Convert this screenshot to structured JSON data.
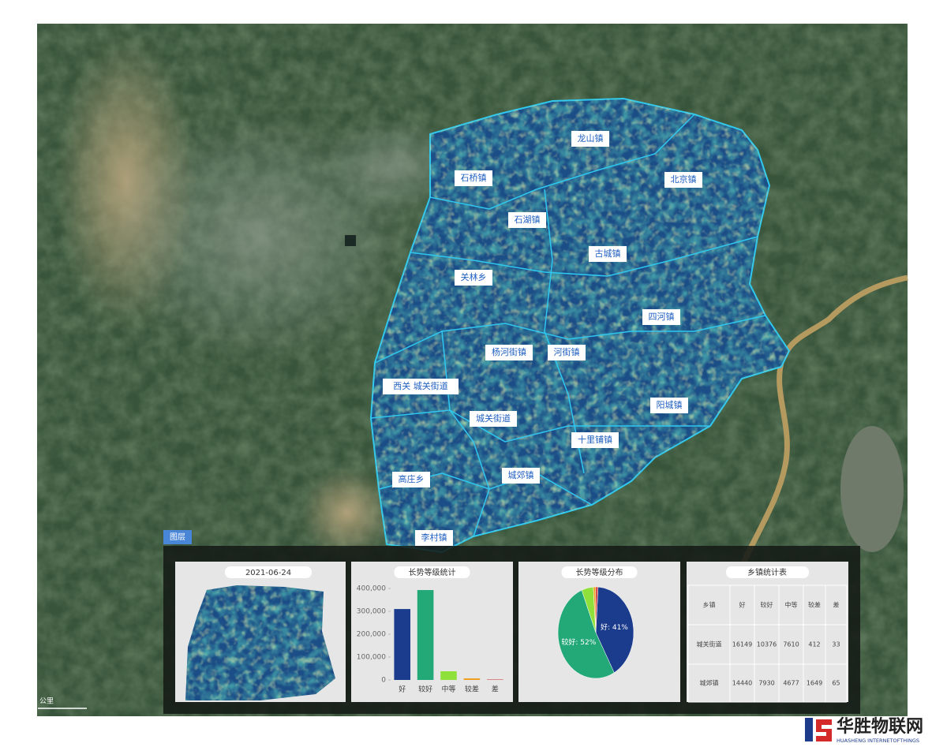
{
  "map": {
    "layer_button": "图层",
    "scale_label": "公里",
    "region_labels": [
      "龙山镇",
      "石桥镇",
      "北京镇",
      "石湖镇",
      "古城镇",
      "关林乡",
      "四河镇",
      "杨河街镇",
      "河街镇",
      "西关 城关街道",
      "城关街道",
      "阳城镇",
      "十里铺镇",
      "高庄乡",
      "城郊镇",
      "李村镇"
    ]
  },
  "thumbnail": {
    "date": "2021-06-24"
  },
  "chart_data": [
    {
      "type": "bar",
      "title": "长势等级统计",
      "categories": [
        "好",
        "较好",
        "中等",
        "较差",
        "差"
      ],
      "values": [
        310000,
        393000,
        38000,
        7000,
        2000
      ],
      "colors": [
        "#1b3b8c",
        "#23a878",
        "#8fe03a",
        "#f0a020",
        "#d04040"
      ],
      "ylim": [
        0,
        400000
      ],
      "yticks": [
        0,
        {
          "value": 100000,
          "label": "100,000"
        },
        {
          "value": 200000,
          "label": "200,000"
        },
        {
          "value": 300000,
          "label": "300,000"
        },
        {
          "value": 400000,
          "label": "400,000"
        }
      ]
    },
    {
      "type": "pie",
      "title": "长势等级分布",
      "categories": [
        "好",
        "较好",
        "中等",
        "较差",
        "差"
      ],
      "values": [
        41,
        52,
        5,
        1,
        1
      ],
      "value_labels": [
        "好: 41%",
        "较好: 52%",
        null,
        null,
        null
      ],
      "colors": [
        "#1b3b8c",
        "#23a878",
        "#8fe03a",
        "#f0a020",
        "#d04040"
      ]
    }
  ],
  "table": {
    "title": "乡镇统计表",
    "header": [
      "乡镇",
      "好",
      "较好",
      "中等",
      "较差",
      "差"
    ],
    "rows": [
      [
        "城关街道",
        "16149",
        "10376",
        "7610",
        "412",
        "33"
      ],
      [
        "城郊镇",
        "14440",
        "7930",
        "4677",
        "1649",
        "65"
      ]
    ]
  },
  "watermark": {
    "name": "华胜物联网",
    "subtitle": "HUASHENG INTERNETOFTHINGS"
  }
}
